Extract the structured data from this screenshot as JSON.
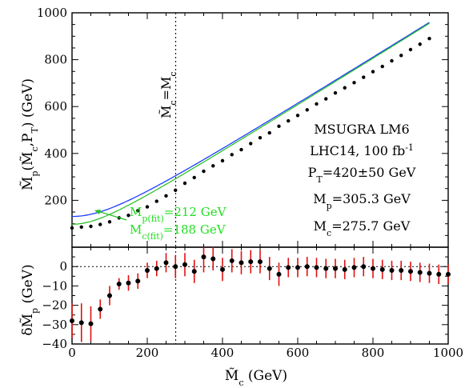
{
  "chart_data": [
    {
      "type": "scatter",
      "panel": "top",
      "xlabel": "M̃c (GeV)",
      "ylabel": "M̃p(M̃c,PT) (GeV)",
      "xlim": [
        0,
        1000
      ],
      "ylim": [
        0,
        1000
      ],
      "x_ticks": [
        "0",
        "200",
        "400",
        "600",
        "800",
        "1000"
      ],
      "y_ticks": [
        "200",
        "400",
        "600",
        "800",
        "1000"
      ],
      "vline": {
        "x": 275.7,
        "label": "M̃c=Mc"
      },
      "annotations": [
        "MSUGRA LM6",
        "LHC14, 100 fb-1",
        "PT=420±50 GeV",
        "Mp=305.3 GeV",
        "Mc=275.7 GeV"
      ],
      "fit_labels": [
        "Mp(fit)=212 GeV",
        "Mc(fit)=188 GeV"
      ],
      "curve_colors": {
        "true": "#1f3cff",
        "fit": "#20c020",
        "points": "#000000"
      },
      "x": [
        0,
        25,
        50,
        75,
        100,
        125,
        150,
        175,
        200,
        225,
        250,
        275,
        300,
        325,
        350,
        375,
        400,
        425,
        450,
        475,
        500,
        525,
        550,
        575,
        600,
        625,
        650,
        675,
        700,
        725,
        750,
        775,
        800,
        825,
        850,
        875,
        900,
        925,
        950
      ],
      "values": [
        82,
        86,
        89,
        97,
        108,
        125,
        136,
        156,
        172,
        196,
        219,
        243,
        273,
        297,
        324,
        347,
        369,
        395,
        416,
        442,
        467,
        488,
        516,
        539,
        562,
        586,
        611,
        633,
        658,
        680,
        702,
        725,
        749,
        771,
        795,
        818,
        843,
        866,
        890
      ]
    },
    {
      "type": "scatter",
      "panel": "bottom",
      "xlabel": "M̃c (GeV)",
      "ylabel": "δM̃p (GeV)",
      "xlim": [
        0,
        1000
      ],
      "ylim": [
        -40,
        10
      ],
      "x_ticks": [
        "0",
        "200",
        "400",
        "600",
        "800",
        "1000"
      ],
      "y_ticks": [
        "-40",
        "-30",
        "-20",
        "-10",
        "0"
      ],
      "x": [
        0,
        25,
        50,
        75,
        100,
        125,
        150,
        175,
        200,
        225,
        250,
        275,
        300,
        325,
        350,
        375,
        400,
        425,
        450,
        475,
        500,
        525,
        550,
        575,
        600,
        625,
        650,
        675,
        700,
        725,
        750,
        775,
        800,
        825,
        850,
        875,
        900,
        925,
        950,
        975,
        1000
      ],
      "values": [
        -28,
        -29,
        -29.5,
        -22,
        -15,
        -9,
        -8.5,
        -7.5,
        -2,
        -1,
        2,
        0,
        1,
        -2.5,
        5,
        4,
        -1.5,
        3,
        2,
        2.5,
        2.5,
        -1,
        -4,
        -0.5,
        -0.5,
        0,
        -0.5,
        -1,
        -1,
        -1.5,
        -0.5,
        0,
        -1,
        -1.5,
        -2,
        -2,
        -2.5,
        -3,
        -3.5,
        -4,
        -4
      ],
      "errors": [
        9,
        10,
        9,
        5,
        5,
        3,
        4,
        4,
        4,
        4,
        5,
        6,
        6,
        6,
        8,
        6,
        6,
        6,
        6,
        6,
        6,
        6,
        6,
        5,
        5,
        5,
        5,
        5,
        5,
        5,
        5,
        5,
        5,
        5,
        5,
        5,
        5,
        5,
        5,
        5,
        5
      ]
    }
  ]
}
